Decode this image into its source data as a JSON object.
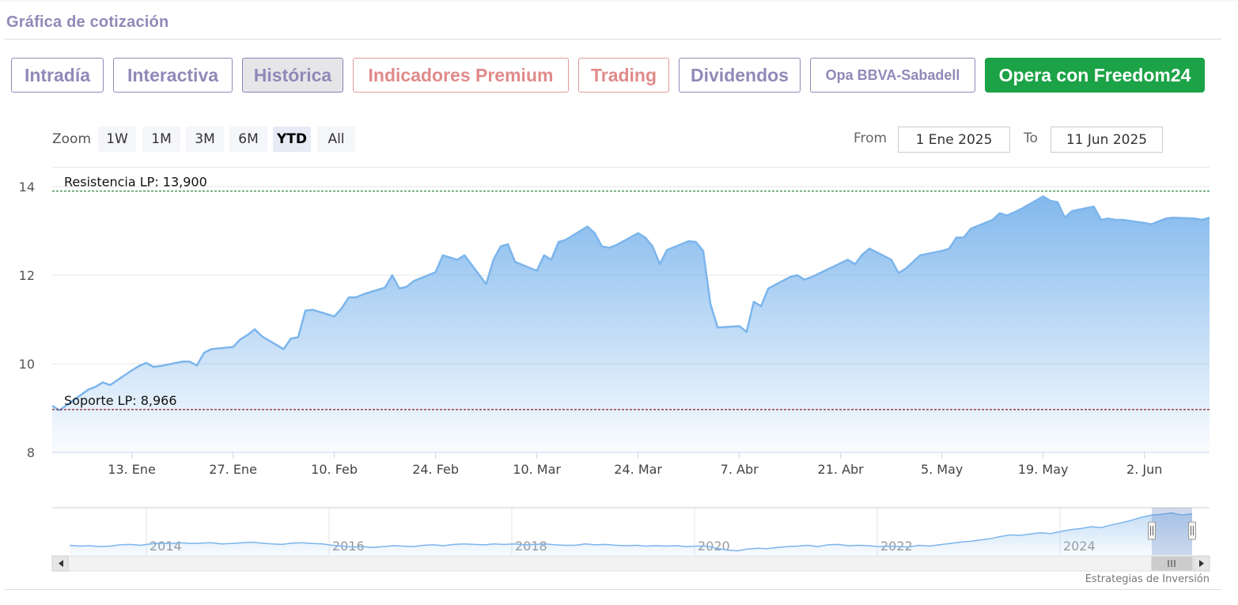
{
  "section_title": "Gráfica de cotización",
  "tabs": [
    {
      "label": "Intradía"
    },
    {
      "label": "Interactiva"
    },
    {
      "label": "Histórica"
    },
    {
      "label": "Indicadores Premium"
    },
    {
      "label": "Trading"
    },
    {
      "label": "Dividendos"
    },
    {
      "label": "Opa BBVA-Sabadell"
    },
    {
      "label": "Opera con Freedom24"
    }
  ],
  "range_selector": {
    "zoom_label": "Zoom",
    "buttons": [
      "1W",
      "1M",
      "3M",
      "6M",
      "YTD",
      "All"
    ],
    "active_button": "YTD",
    "from_label": "From",
    "from_value": "1 Ene 2025",
    "to_label": "To",
    "to_value": "11 Jun 2025"
  },
  "colors": {
    "brand": "#9189b8",
    "premium": "#e08a8a",
    "cta": "#1ca347",
    "series_line": "#7cb5ec",
    "resistance": "#2e8b3a",
    "support": "#8b1a1a"
  },
  "credits": "Estrategias de Inversión",
  "chart_data": {
    "type": "area",
    "ylim": [
      8,
      14
    ],
    "y_ticks": [
      "8",
      "10",
      "12",
      "14"
    ],
    "x_tick_labels": [
      "13. Ene",
      "27. Ene",
      "10. Feb",
      "24. Feb",
      "10. Mar",
      "24. Mar",
      "7. Abr",
      "21. Abr",
      "5. May",
      "19. May",
      "2. Jun"
    ],
    "x_tick_dates": [
      "2025-01-13",
      "2025-01-27",
      "2025-02-10",
      "2025-02-24",
      "2025-03-10",
      "2025-03-24",
      "2025-04-07",
      "2025-04-21",
      "2025-05-05",
      "2025-05-19",
      "2025-06-02"
    ],
    "x_range": [
      "2025-01-02",
      "2025-06-11"
    ],
    "grid": true,
    "legend": false,
    "series": [
      {
        "dates": [
          "2025-01-02",
          "2025-01-03",
          "2025-01-06",
          "2025-01-07",
          "2025-01-08",
          "2025-01-09",
          "2025-01-10",
          "2025-01-13",
          "2025-01-14",
          "2025-01-15",
          "2025-01-16",
          "2025-01-17",
          "2025-01-20",
          "2025-01-21",
          "2025-01-22",
          "2025-01-23",
          "2025-01-24",
          "2025-01-27",
          "2025-01-28",
          "2025-01-29",
          "2025-01-30",
          "2025-01-31",
          "2025-02-03",
          "2025-02-04",
          "2025-02-05",
          "2025-02-06",
          "2025-02-07",
          "2025-02-10",
          "2025-02-11",
          "2025-02-12",
          "2025-02-13",
          "2025-02-14",
          "2025-02-17",
          "2025-02-18",
          "2025-02-19",
          "2025-02-20",
          "2025-02-21",
          "2025-02-24",
          "2025-02-25",
          "2025-02-26",
          "2025-02-27",
          "2025-02-28",
          "2025-03-03",
          "2025-03-04",
          "2025-03-05",
          "2025-03-06",
          "2025-03-07",
          "2025-03-10",
          "2025-03-11",
          "2025-03-12",
          "2025-03-13",
          "2025-03-14",
          "2025-03-17",
          "2025-03-18",
          "2025-03-19",
          "2025-03-20",
          "2025-03-21",
          "2025-03-24",
          "2025-03-25",
          "2025-03-26",
          "2025-03-27",
          "2025-03-28",
          "2025-03-31",
          "2025-04-01",
          "2025-04-02",
          "2025-04-03",
          "2025-04-04",
          "2025-04-07",
          "2025-04-08",
          "2025-04-09",
          "2025-04-10",
          "2025-04-11",
          "2025-04-14",
          "2025-04-15",
          "2025-04-16",
          "2025-04-17",
          "2025-04-22",
          "2025-04-23",
          "2025-04-24",
          "2025-04-25",
          "2025-04-28",
          "2025-04-29",
          "2025-04-30",
          "2025-05-02",
          "2025-05-05",
          "2025-05-06",
          "2025-05-07",
          "2025-05-08",
          "2025-05-09",
          "2025-05-12",
          "2025-05-13",
          "2025-05-14",
          "2025-05-15",
          "2025-05-16",
          "2025-05-19",
          "2025-05-20",
          "2025-05-21",
          "2025-05-22",
          "2025-05-23",
          "2025-05-26",
          "2025-05-27",
          "2025-05-28",
          "2025-05-29",
          "2025-05-30",
          "2025-06-02",
          "2025-06-03",
          "2025-06-04",
          "2025-06-05",
          "2025-06-06",
          "2025-06-09",
          "2025-06-10",
          "2025-06-11"
        ],
        "values": [
          9.05,
          8.95,
          9.3,
          9.42,
          9.48,
          9.58,
          9.52,
          9.85,
          9.95,
          10.02,
          9.93,
          9.95,
          10.05,
          10.05,
          9.96,
          10.25,
          10.33,
          10.38,
          10.55,
          10.65,
          10.78,
          10.62,
          10.33,
          10.57,
          10.6,
          11.2,
          11.22,
          11.07,
          11.25,
          11.5,
          11.5,
          11.57,
          11.72,
          12.0,
          11.7,
          11.74,
          11.87,
          12.07,
          12.45,
          12.4,
          12.35,
          12.45,
          11.8,
          12.35,
          12.65,
          12.7,
          12.3,
          12.1,
          12.45,
          12.35,
          12.75,
          12.8,
          13.1,
          12.95,
          12.65,
          12.62,
          12.68,
          12.95,
          12.85,
          12.65,
          12.25,
          12.57,
          12.77,
          12.75,
          12.55,
          11.35,
          10.82,
          10.85,
          10.72,
          11.4,
          11.3,
          11.7,
          11.96,
          12.0,
          11.9,
          11.96,
          12.35,
          12.25,
          12.47,
          12.6,
          12.35,
          12.05,
          12.15,
          12.45,
          12.55,
          12.6,
          12.85,
          12.85,
          13.05,
          13.25,
          13.4,
          13.35,
          13.42,
          13.5,
          13.78,
          13.68,
          13.65,
          13.3,
          13.45,
          13.55,
          13.25,
          13.28,
          13.25,
          13.25,
          13.18,
          13.15,
          13.22,
          13.28,
          13.3,
          13.28,
          13.25,
          13.3
        ]
      }
    ],
    "annotations": [
      {
        "label": "Resistencia LP: 13,900",
        "value": 13.9
      },
      {
        "label": "Soporte LP: 8,966",
        "value": 8.966
      }
    ],
    "navigator": {
      "x_tick_labels": [
        "2014",
        "2016",
        "2018",
        "2020",
        "2022",
        "2024"
      ],
      "values": [
        6.3,
        6.1,
        6.2,
        6.0,
        6.1,
        6.4,
        6.5,
        6.3,
        6.6,
        6.8,
        6.7,
        6.9,
        6.7,
        6.8,
        6.9,
        6.6,
        6.7,
        6.9,
        7.0,
        6.8,
        6.6,
        6.5,
        6.8,
        6.9,
        6.7,
        6.6,
        6.3,
        6.1,
        5.9,
        6.0,
        5.8,
        6.0,
        6.2,
        6.1,
        6.0,
        6.3,
        6.4,
        6.2,
        6.5,
        6.6,
        6.5,
        6.4,
        6.6,
        6.5,
        6.6,
        6.4,
        6.5,
        6.6,
        6.4,
        6.3,
        6.3,
        6.6,
        6.4,
        6.5,
        6.3,
        6.2,
        6.3,
        6.1,
        6.2,
        6.1,
        6.2,
        6.0,
        6.1,
        6.1,
        5.6,
        5.2,
        5.0,
        5.4,
        5.6,
        5.5,
        5.8,
        6.0,
        6.1,
        6.3,
        6.0,
        6.4,
        6.5,
        6.2,
        6.3,
        6.2,
        6.0,
        6.1,
        6.0,
        5.9,
        6.3,
        6.1,
        6.4,
        6.7,
        7.0,
        7.2,
        7.5,
        7.8,
        8.3,
        8.7,
        8.6,
        8.9,
        9.2,
        9.0,
        9.5,
        9.9,
        10.2,
        10.6,
        10.4,
        11.0,
        11.5,
        12.1,
        12.8,
        13.3,
        13.5,
        13.8,
        13.3,
        13.6
      ]
    }
  }
}
